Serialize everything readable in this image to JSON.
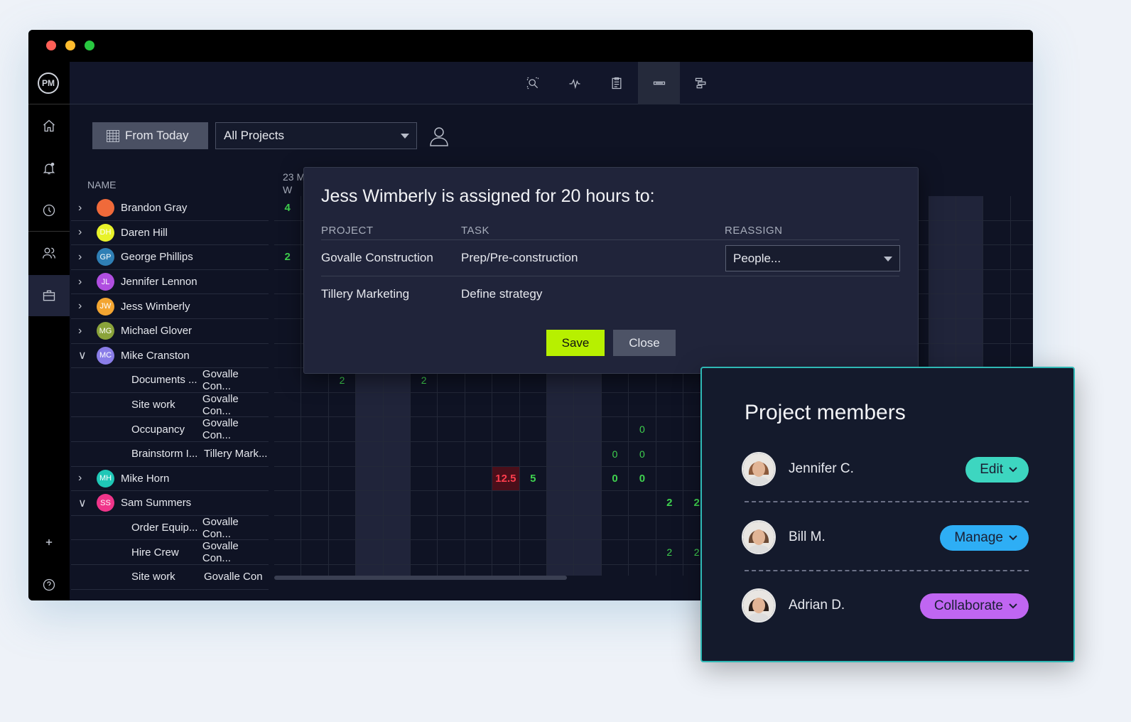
{
  "window": {
    "controls": [
      "close",
      "minimize",
      "maximize"
    ],
    "colors": {
      "close": "#ff5f57",
      "minimize": "#febc2e",
      "maximize": "#28c840"
    }
  },
  "sidebar": {
    "logo": "PM",
    "items": [
      "home-icon",
      "bell-icon",
      "clock-icon",
      "people-icon",
      "briefcase-icon",
      "plus-icon",
      "help-icon"
    ]
  },
  "toolbar": {
    "buttons": [
      "zoom-search-icon",
      "activity-icon",
      "clipboard-icon",
      "workload-icon",
      "gantt-icon"
    ],
    "active": "workload-icon"
  },
  "filters": {
    "from_today": "From Today",
    "project_select": "All Projects"
  },
  "list": {
    "name_header": "NAME",
    "date_header_day": "23 M",
    "date_header_weekday": "W",
    "rows": [
      {
        "type": "person",
        "name": "Brandon Gray",
        "initials": "",
        "color": "#f06a3a",
        "expanded": false,
        "hours": [
          "4",
          "",
          "",
          "",
          "",
          "",
          "",
          "",
          "",
          "",
          "",
          "",
          "",
          "",
          "",
          ""
        ]
      },
      {
        "type": "person",
        "name": "Daren Hill",
        "initials": "DH",
        "color": "#e8f22a",
        "expanded": false,
        "hours": [
          "",
          "",
          "",
          "",
          "",
          "",
          "",
          "",
          "",
          "",
          "",
          "",
          "",
          "",
          "",
          ""
        ]
      },
      {
        "type": "person",
        "name": "George Phillips",
        "initials": "GP",
        "color": "#2f7fb5",
        "expanded": false,
        "hours": [
          "2",
          "",
          "",
          "",
          "",
          "",
          "",
          "",
          "",
          "",
          "",
          "",
          "",
          "",
          "",
          ""
        ]
      },
      {
        "type": "person",
        "name": "Jennifer Lennon",
        "initials": "JL",
        "color": "#b04ee0",
        "expanded": false,
        "hours": [
          "",
          "",
          "",
          "",
          "",
          "",
          "",
          "",
          "",
          "",
          "",
          "",
          "",
          "",
          "",
          ""
        ]
      },
      {
        "type": "person",
        "name": "Jess Wimberly",
        "initials": "JW",
        "color": "#f3a531",
        "expanded": false,
        "hours": [
          "",
          "",
          "",
          "",
          "",
          "",
          "",
          "",
          "",
          "",
          "",
          "",
          "",
          "",
          "",
          ""
        ]
      },
      {
        "type": "person",
        "name": "Michael Glover",
        "initials": "MG",
        "color": "#8aa33a",
        "expanded": false,
        "hours": [
          "",
          "",
          "",
          "",
          "",
          "",
          "",
          "",
          "",
          "",
          "",
          "",
          "",
          "",
          "",
          ""
        ]
      },
      {
        "type": "person",
        "name": "Mike Cranston",
        "initials": "MC",
        "color": "#8a7de8",
        "expanded": true,
        "hours": [
          "",
          "",
          "",
          "",
          "",
          "",
          "",
          "",
          "",
          "",
          "",
          "",
          "",
          "",
          "",
          ""
        ]
      },
      {
        "type": "task",
        "name": "Documents ...",
        "project": "Govalle Con...",
        "hours": [
          "",
          "",
          "2",
          "",
          "",
          "2",
          "",
          "",
          "",
          "",
          "",
          "",
          "",
          "",
          "",
          ""
        ]
      },
      {
        "type": "task",
        "name": "Site work",
        "project": "Govalle Con...",
        "hours": [
          "",
          "",
          "",
          "",
          "",
          "",
          "",
          "",
          "",
          "",
          "",
          "",
          "",
          "",
          "",
          ""
        ]
      },
      {
        "type": "task",
        "name": "Occupancy",
        "project": "Govalle Con...",
        "hours": [
          "",
          "",
          "",
          "",
          "",
          "",
          "",
          "",
          "",
          "",
          "",
          "",
          "",
          "0",
          "",
          ""
        ]
      },
      {
        "type": "task",
        "name": "Brainstorm I...",
        "project": "Tillery Mark...",
        "hours": [
          "",
          "",
          "",
          "",
          "",
          "",
          "",
          "",
          "",
          "",
          "",
          "",
          "0",
          "0",
          "",
          ""
        ]
      },
      {
        "type": "person",
        "name": "Mike Horn",
        "initials": "MH",
        "color": "#1fc7b6",
        "expanded": false,
        "hours": [
          "",
          "",
          "",
          "",
          "",
          "",
          "",
          "",
          "12.5",
          "5",
          "",
          "",
          "0",
          "0",
          "",
          ""
        ],
        "overloaded": [
          "12.5"
        ]
      },
      {
        "type": "person",
        "name": "Sam Summers",
        "initials": "SS",
        "color": "#f0358a",
        "expanded": true,
        "hours": [
          "",
          "",
          "",
          "",
          "",
          "",
          "",
          "",
          "",
          "",
          "",
          "",
          "",
          "",
          "2",
          "2"
        ]
      },
      {
        "type": "task",
        "name": "Order Equip...",
        "project": "Govalle Con...",
        "hours": [
          "",
          "",
          "",
          "",
          "",
          "",
          "",
          "",
          "",
          "",
          "",
          "",
          "",
          "",
          "",
          ""
        ]
      },
      {
        "type": "task",
        "name": "Hire Crew",
        "project": "Govalle Con...",
        "hours": [
          "",
          "",
          "",
          "",
          "",
          "",
          "",
          "",
          "",
          "",
          "",
          "",
          "",
          "",
          "2",
          "2"
        ]
      },
      {
        "type": "task",
        "name": "Site work",
        "project": "Govalle Con",
        "hours": [
          "",
          "",
          "",
          "",
          "",
          "",
          "",
          "",
          "",
          "",
          "",
          "",
          "",
          "",
          "",
          ""
        ]
      }
    ]
  },
  "modal": {
    "title": "Jess Wimberly is assigned for 20 hours to:",
    "headers": {
      "project": "PROJECT",
      "task": "TASK",
      "reassign": "REASSIGN"
    },
    "rows": [
      {
        "project": "Govalle Construction",
        "task": "Prep/Pre-construction",
        "reassign_placeholder": "People..."
      },
      {
        "project": "Tillery Marketing",
        "task": "Define strategy"
      }
    ],
    "save": "Save",
    "close": "Close"
  },
  "members_panel": {
    "title": "Project members",
    "members": [
      {
        "name": "Jennifer C.",
        "role": "Edit",
        "role_color": "#3dd6c0"
      },
      {
        "name": "Bill M.",
        "role": "Manage",
        "role_color": "#2eaef5"
      },
      {
        "name": "Adrian D.",
        "role": "Collaborate",
        "role_color": "#c066f2"
      }
    ]
  }
}
